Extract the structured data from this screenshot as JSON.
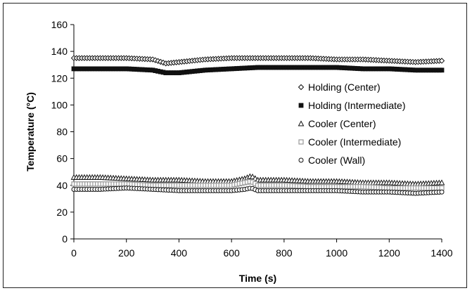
{
  "chart_data": {
    "type": "scatter",
    "title": "",
    "xlabel": "Time (s)",
    "ylabel": "Temperature (°C)",
    "xlim": [
      0,
      1400
    ],
    "ylim": [
      0,
      160
    ],
    "xticks": [
      0,
      200,
      400,
      600,
      800,
      1000,
      1200,
      1400
    ],
    "yticks": [
      0,
      20,
      40,
      60,
      80,
      100,
      120,
      140,
      160
    ],
    "grid": false,
    "legend_position": "right",
    "series": [
      {
        "name": "Holding (Center)",
        "marker": "diamond",
        "x": [
          0,
          100,
          200,
          300,
          350,
          400,
          500,
          600,
          700,
          800,
          900,
          1000,
          1100,
          1200,
          1300,
          1400
        ],
        "y": [
          135,
          135,
          135,
          134,
          131,
          132,
          134,
          135,
          135,
          135,
          135,
          134,
          134,
          133,
          132,
          133
        ]
      },
      {
        "name": "Holding (Intermediate)",
        "marker": "square-filled",
        "x": [
          0,
          100,
          200,
          300,
          350,
          400,
          500,
          600,
          700,
          800,
          900,
          1000,
          1100,
          1200,
          1300,
          1400
        ],
        "y": [
          127,
          127,
          127,
          126,
          124,
          124,
          126,
          127,
          128,
          128,
          128,
          128,
          127,
          127,
          126,
          126
        ]
      },
      {
        "name": "Cooler (Center)",
        "marker": "triangle",
        "x": [
          0,
          100,
          200,
          300,
          400,
          500,
          600,
          650,
          675,
          700,
          800,
          900,
          1000,
          1100,
          1200,
          1300,
          1400
        ],
        "y": [
          46,
          46,
          45,
          44,
          44,
          43,
          43,
          45,
          47,
          44,
          44,
          43,
          43,
          42,
          42,
          41,
          42
        ]
      },
      {
        "name": "Cooler (Intermediate)",
        "marker": "square",
        "x": [
          0,
          100,
          200,
          300,
          400,
          500,
          600,
          650,
          675,
          700,
          800,
          900,
          1000,
          1100,
          1200,
          1300,
          1400
        ],
        "y": [
          41,
          41,
          41,
          40,
          40,
          40,
          40,
          42,
          43,
          40,
          40,
          39,
          39,
          39,
          38,
          38,
          38
        ]
      },
      {
        "name": "Cooler (Wall)",
        "marker": "circle",
        "x": [
          0,
          100,
          200,
          300,
          400,
          500,
          600,
          650,
          675,
          700,
          800,
          900,
          1000,
          1100,
          1200,
          1300,
          1400
        ],
        "y": [
          37,
          37,
          38,
          37,
          36,
          36,
          36,
          37,
          38,
          36,
          36,
          36,
          36,
          35,
          35,
          34,
          35
        ]
      }
    ]
  },
  "colors": {
    "axis": "#000000",
    "marker_dark": "#111111",
    "marker_light": "#9a9a9a",
    "background": "#ffffff"
  }
}
